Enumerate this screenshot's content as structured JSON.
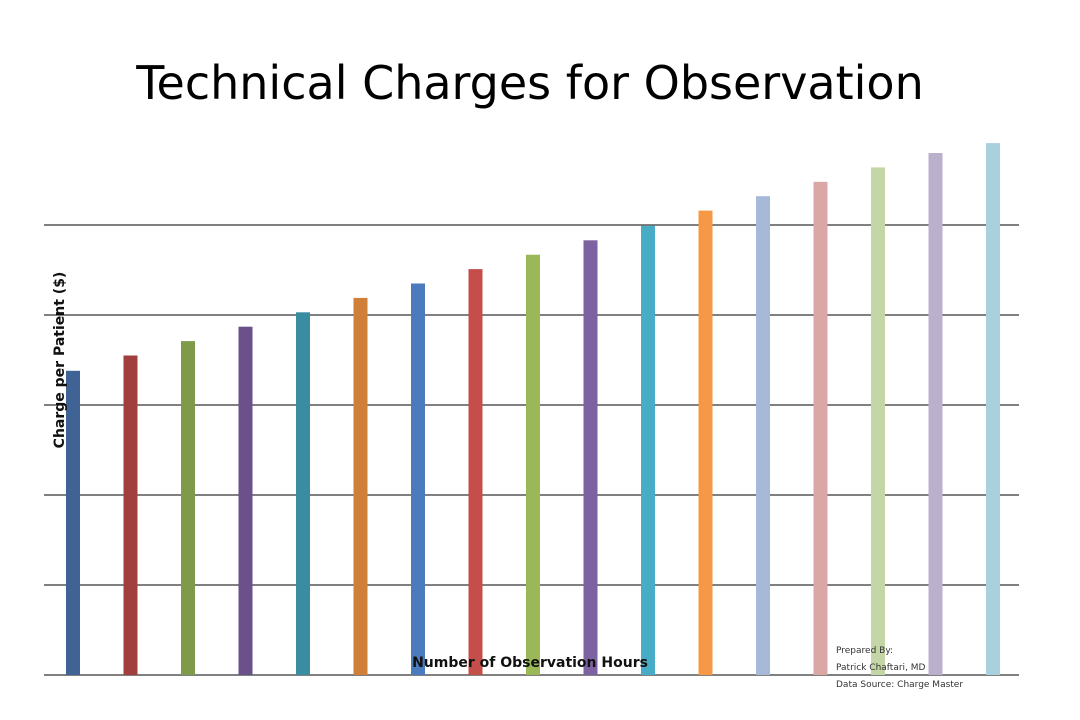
{
  "chart_data": {
    "type": "bar",
    "title": "Technical Charges for Observation",
    "xlabel": "Number of Observation Hours",
    "ylabel": "Charge per Patient ($)",
    "ylim": [
      0,
      590
    ],
    "y_gridlines": [
      0,
      100,
      200,
      300,
      400,
      500
    ],
    "grid": true,
    "tick_labels_visible": false,
    "legend": "none",
    "series": [
      {
        "values": [
          338,
          355,
          371,
          387,
          403,
          419,
          435,
          451,
          467,
          483,
          499,
          516,
          532,
          548,
          564,
          580,
          591
        ]
      }
    ],
    "bar_colors": [
      "#3e6394",
      "#a13f3f",
      "#7f9a49",
      "#6b5189",
      "#3a8da0",
      "#d07f38",
      "#4c7bbd",
      "#c54d4a",
      "#9ab857",
      "#7c62a0",
      "#48acc6",
      "#f69845",
      "#a7b9d9",
      "#dba7a6",
      "#c4d6a6",
      "#bab0cc",
      "#a8d0dd"
    ]
  },
  "credits": {
    "line1": "Prepared By:",
    "line2": "Patrick Chaftari, MD",
    "line3": "Data Source: Charge Master"
  }
}
